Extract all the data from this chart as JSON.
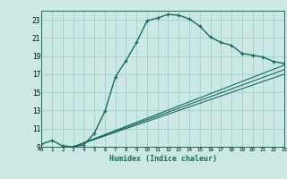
{
  "title": "",
  "xlabel": "Humidex (Indice chaleur)",
  "bg_color": "#cce8e4",
  "line_color": "#1a6b5a",
  "grid_color_major": "#aad4d0",
  "grid_color_minor": "#aad4d0",
  "xmin": 0,
  "xmax": 23,
  "ymin": 9,
  "ymax": 24,
  "yticks": [
    9,
    11,
    13,
    15,
    17,
    19,
    21,
    23
  ],
  "xticks": [
    0,
    1,
    2,
    3,
    4,
    5,
    6,
    7,
    8,
    9,
    10,
    11,
    12,
    13,
    14,
    15,
    16,
    17,
    18,
    19,
    20,
    21,
    22,
    23
  ],
  "curve1_x": [
    0,
    1,
    2,
    3,
    4,
    5,
    6,
    7,
    8,
    9,
    10,
    11,
    12,
    13,
    14,
    15,
    16,
    17,
    18,
    19,
    20,
    21,
    22,
    23
  ],
  "curve1_y": [
    9.3,
    9.7,
    9.1,
    9.0,
    9.2,
    10.5,
    12.9,
    16.7,
    18.5,
    20.5,
    22.9,
    23.2,
    23.6,
    23.5,
    23.1,
    22.3,
    21.1,
    20.5,
    20.2,
    19.3,
    19.1,
    18.9,
    18.4,
    18.2
  ],
  "line1_x": [
    3,
    23
  ],
  "line1_y": [
    9.0,
    18.0
  ],
  "line2_x": [
    3,
    23
  ],
  "line2_y": [
    9.0,
    17.5
  ],
  "line3_x": [
    3,
    23
  ],
  "line3_y": [
    9.0,
    17.0
  ]
}
